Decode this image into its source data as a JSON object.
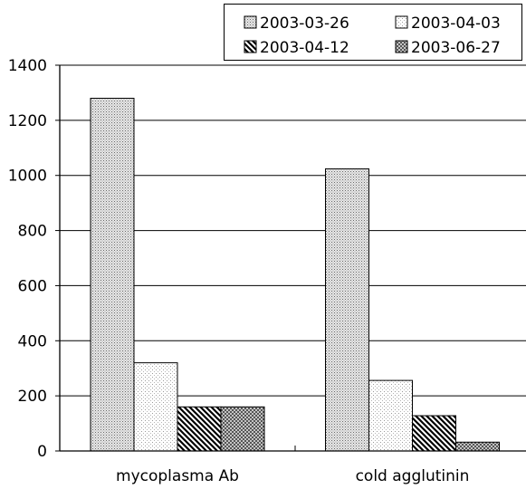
{
  "chart_data": {
    "type": "bar",
    "categories": [
      "mycoplasma Ab",
      "cold agglutinin"
    ],
    "series": [
      {
        "name": "2003-03-26",
        "values": [
          1280,
          1024
        ],
        "pattern": "dense-dots"
      },
      {
        "name": "2003-04-03",
        "values": [
          320,
          256
        ],
        "pattern": "sparse-dots"
      },
      {
        "name": "2003-04-12",
        "values": [
          160,
          128
        ],
        "pattern": "diagonal-hatch"
      },
      {
        "name": "2003-06-27",
        "values": [
          160,
          32
        ],
        "pattern": "checker"
      }
    ],
    "ylim": [
      0,
      1400
    ],
    "yticks": [
      0,
      200,
      400,
      600,
      800,
      1000,
      1200,
      1400
    ],
    "grid": true,
    "legend": "top-right",
    "title": "",
    "xlabel": "",
    "ylabel": ""
  }
}
